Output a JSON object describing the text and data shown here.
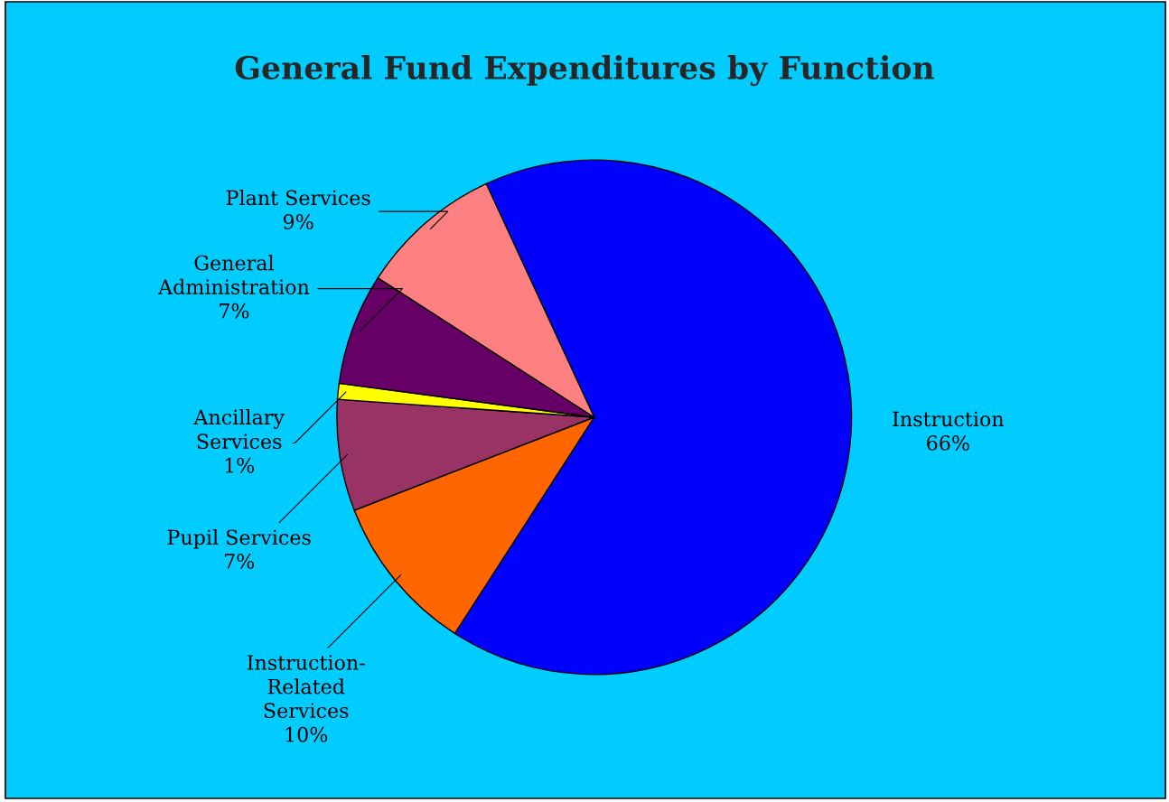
{
  "chart_data": {
    "type": "pie",
    "title": "General Fund Expenditures by Function",
    "categories": [
      "Instruction",
      "Instruction-\nRelated\nServices",
      "Pupil Services",
      "Ancillary\nServices",
      "General\nAdministration",
      "Plant Services"
    ],
    "values": [
      66,
      10,
      7,
      1,
      7,
      9
    ],
    "value_labels": [
      "66%",
      "10%",
      "7%",
      "1%",
      "7%",
      "9%"
    ],
    "colors": [
      "#0000ff",
      "#ff6600",
      "#993366",
      "#ffff00",
      "#660066",
      "#ff8080"
    ]
  }
}
